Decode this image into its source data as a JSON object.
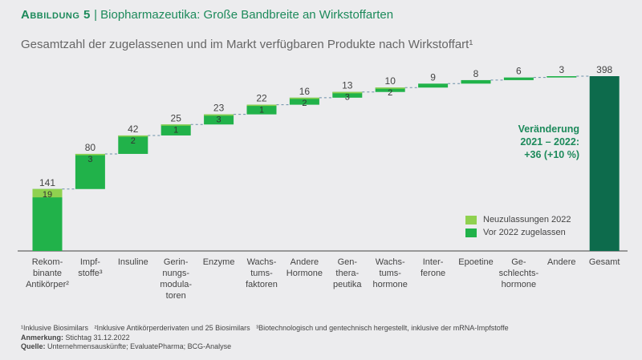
{
  "header": {
    "figure_label": "Abbildung 5",
    "separator": "|",
    "title": "Biopharmazeutika: Große Bandbreite an Wirkstoffarten",
    "subtitle": "Gesamtzahl der zugelassenen und im Markt verfügbaren Produkte nach Wirkstoffart¹"
  },
  "chart_data": {
    "type": "waterfall",
    "categories": [
      "Rekom-\nbinante\nAntikörper²",
      "Impf-\nstoffe³",
      "Insuline",
      "Gerin-\nnungs-\nmodula-\ntoren",
      "Enzyme",
      "Wachs-\ntums-\nfaktoren",
      "Andere\nHormone",
      "Gen-\nthera-\npeutika",
      "Wachs-\ntums-\nhormone",
      "Inter-\nferone",
      "Epoetine",
      "Ge-\nschlechts-\nhormone",
      "Andere",
      "Gesamt"
    ],
    "totals": [
      141,
      80,
      42,
      25,
      23,
      22,
      16,
      13,
      10,
      9,
      8,
      6,
      3,
      398
    ],
    "series": [
      {
        "name": "Neuzulassungen 2022",
        "values": [
          19,
          3,
          2,
          1,
          3,
          1,
          2,
          3,
          2,
          null,
          null,
          null,
          null,
          null
        ]
      },
      {
        "name": "Vor 2022 zugelassen"
      }
    ],
    "new_labels": [
      "19",
      "3",
      "2",
      "1",
      "3",
      "1",
      "2",
      "3",
      "2",
      "",
      "",
      "",
      "",
      ""
    ],
    "legend": "bottom-right",
    "annotation": [
      "Veränderung",
      "2021 – 2022:",
      "+36 (+10 %)"
    ],
    "colors": {
      "new": "#8fd14f",
      "before": "#21b24a",
      "total": "#0d6b4c",
      "connector": "#6a8fa8"
    }
  },
  "footer": {
    "notes": "¹Inklusive Biosimilars   ²Inklusive Antikörperderivaten und 25 Biosimilars   ³Biotechnologisch und gentechnisch hergestellt, inklusive der mRNA-Impfstoffe",
    "remark_label": "Anmerkung:",
    "remark": " Stichtag 31.12.2022",
    "source_label": "Quelle:",
    "source": " Unternehmensauskünfte; EvaluatePharma; BCG-Analyse"
  }
}
